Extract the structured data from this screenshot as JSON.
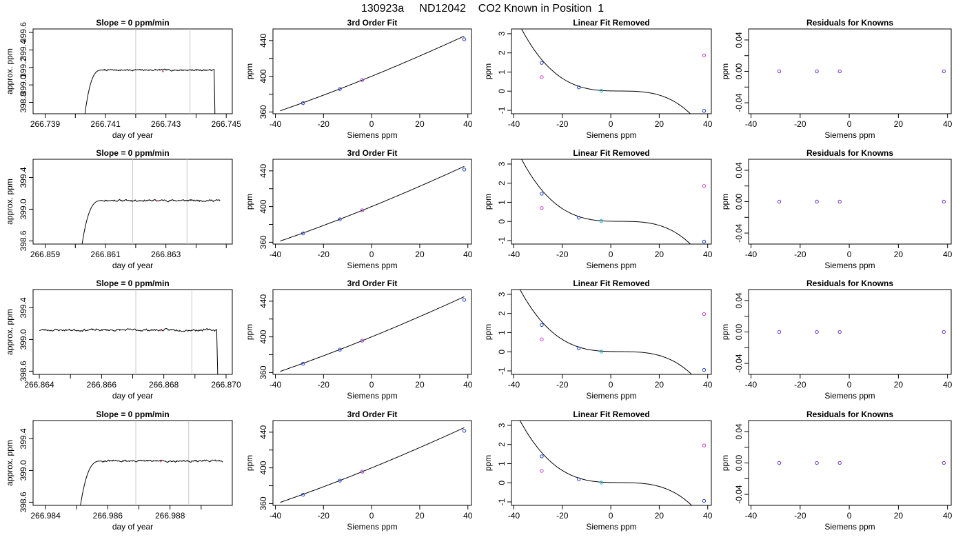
{
  "page_title": "130923a     ND12042    CO2 Known in Position  1",
  "chart_data": [
    {
      "row": 1,
      "type": "line",
      "title": "Slope =  0  ppm/min",
      "xlabel": "day of year",
      "ylabel": "approx. ppm",
      "xlim": [
        266.7386,
        266.7452
      ],
      "ylim": [
        398.67,
        399.64
      ],
      "xticks": [
        266.739,
        266.74,
        266.741,
        266.742,
        266.743,
        266.744,
        266.745
      ],
      "xtick_labels": [
        "266.739",
        "",
        "266.741",
        "",
        "266.743",
        "",
        "266.745"
      ],
      "yticks": [
        398.8,
        399.0,
        399.2,
        399.4,
        399.6
      ],
      "ytick_labels": [
        "398.8",
        "399.0",
        "399.2",
        "399.4",
        "399.6"
      ],
      "vlines": [
        266.742,
        266.7438
      ],
      "trace": {
        "start": 266.7403,
        "rise_end": 266.7409,
        "end": 266.7446,
        "level": 399.17,
        "rise_from": 398.62,
        "drop_to": 398.62,
        "noise": 0.006,
        "seed": 7
      },
      "marker": {
        "x": 266.7429,
        "y": 399.155,
        "color": "#e85a8a"
      }
    },
    {
      "row": 2,
      "type": "line",
      "title": "Slope =  0  ppm/min",
      "xlabel": "day of year",
      "ylabel": "approx. ppm",
      "xlim": [
        266.8586,
        266.8652
      ],
      "ylim": [
        398.56,
        399.63
      ],
      "xticks": [
        266.859,
        266.86,
        266.861,
        266.862,
        266.863,
        266.864,
        266.865
      ],
      "xtick_labels": [
        "266.859",
        "",
        "266.861",
        "",
        "266.863",
        "",
        ""
      ],
      "yticks": [
        398.6,
        399.0,
        399.4
      ],
      "ytick_labels": [
        "398.6",
        "399.0",
        "399.4"
      ],
      "vlines": [
        266.8619,
        266.8637
      ],
      "trace": {
        "start": 266.8602,
        "rise_end": 266.8609,
        "end": 266.8648,
        "level": 399.11,
        "rise_from": 398.5,
        "drop_to": null,
        "noise": 0.008,
        "seed": 11
      },
      "marker": {
        "x": 266.8627,
        "y": 399.105,
        "color": "#e85a8a"
      }
    },
    {
      "row": 3,
      "type": "line",
      "title": "Slope =  0  ppm/min",
      "xlabel": "day of year",
      "ylabel": "approx. ppm",
      "xlim": [
        266.8638,
        266.8702
      ],
      "ylim": [
        398.56,
        399.63
      ],
      "xticks": [
        266.864,
        266.865,
        266.866,
        266.867,
        266.868,
        266.869,
        266.87
      ],
      "xtick_labels": [
        "266.864",
        "",
        "266.866",
        "",
        "266.868",
        "",
        "266.870"
      ],
      "yticks": [
        398.6,
        399.0,
        399.4
      ],
      "ytick_labels": [
        "398.6",
        "399.0",
        "399.4"
      ],
      "vlines": [
        266.8671,
        266.8689
      ],
      "trace": {
        "start": 266.864,
        "rise_end": 266.864,
        "end": 266.8697,
        "level": 399.12,
        "rise_from": 399.12,
        "drop_to": 398.5,
        "noise": 0.01,
        "seed": 23
      },
      "marker": {
        "x": 266.8679,
        "y": 399.115,
        "color": "#e85a8a"
      }
    },
    {
      "row": 4,
      "type": "line",
      "title": "Slope =  0  ppm/min",
      "xlabel": "day of year",
      "ylabel": "approx. ppm",
      "xlim": [
        266.9836,
        266.99
      ],
      "ylim": [
        398.56,
        399.63
      ],
      "xticks": [
        266.984,
        266.985,
        266.986,
        266.987,
        266.988,
        266.989
      ],
      "xtick_labels": [
        "266.984",
        "",
        "266.986",
        "",
        "266.988",
        ""
      ],
      "yticks": [
        398.6,
        399.0,
        399.4
      ],
      "ytick_labels": [
        "398.6",
        "399.0",
        "399.4"
      ],
      "vlines": [
        266.9869,
        266.9886
      ],
      "trace": {
        "start": 266.9851,
        "rise_end": 266.9858,
        "end": 266.9897,
        "level": 399.12,
        "rise_from": 398.5,
        "drop_to": null,
        "noise": 0.008,
        "seed": 31
      },
      "marker": {
        "x": 266.9877,
        "y": 399.115,
        "color": "#e85a8a"
      }
    },
    {
      "row": 1,
      "type": "scatter",
      "title": "3rd Order Fit",
      "xlabel": "Siemens ppm",
      "ylabel": "ppm",
      "xlim": [
        -41,
        41.5
      ],
      "ylim": [
        358,
        453
      ],
      "xticks": [
        -40,
        -20,
        0,
        20,
        40
      ],
      "xtick_labels": [
        "-40",
        "-20",
        "0",
        "20",
        "40"
      ],
      "yticks": [
        360,
        380,
        400,
        420,
        440
      ],
      "ytick_labels": [
        "360",
        "",
        "400",
        "",
        "440"
      ],
      "curve": {
        "x_from": -38,
        "x_to": 38.5,
        "linear": [
          400,
          1.1
        ],
        "cubic": [
          0,
          0.002,
          -5e-06
        ]
      },
      "points": [
        {
          "x": -28.5,
          "y": 369.9,
          "color": "#1f3fd0"
        },
        {
          "x": -13.2,
          "y": 385.7,
          "color": "#1f3fd0"
        },
        {
          "x": -3.9,
          "y": 395.8,
          "color": "#a040d0"
        },
        {
          "x": 38.5,
          "y": 441.5,
          "color": "#1f3fd0"
        }
      ]
    },
    {
      "row": 2,
      "type": "scatter",
      "title": "3rd Order Fit",
      "xlabel": "Siemens ppm",
      "ylabel": "ppm",
      "xlim": [
        -41,
        41.5
      ],
      "ylim": [
        358,
        453
      ],
      "xticks": [
        -40,
        -20,
        0,
        20,
        40
      ],
      "xtick_labels": [
        "-40",
        "-20",
        "0",
        "20",
        "40"
      ],
      "yticks": [
        360,
        380,
        400,
        420,
        440
      ],
      "ytick_labels": [
        "360",
        "",
        "400",
        "",
        "440"
      ],
      "curve": {
        "x_from": -38,
        "x_to": 38.5,
        "linear": [
          400,
          1.1
        ],
        "cubic": [
          0,
          0.002,
          -5e-06
        ]
      },
      "points": [
        {
          "x": -28.5,
          "y": 369.9,
          "color": "#1f3fd0"
        },
        {
          "x": -13.2,
          "y": 385.7,
          "color": "#1f3fd0"
        },
        {
          "x": -3.9,
          "y": 395.8,
          "color": "#a040d0"
        },
        {
          "x": 38.5,
          "y": 441.5,
          "color": "#1f3fd0"
        }
      ]
    },
    {
      "row": 3,
      "type": "scatter",
      "title": "3rd Order Fit",
      "xlabel": "Siemens ppm",
      "ylabel": "ppm",
      "xlim": [
        -41,
        41.5
      ],
      "ylim": [
        358,
        453
      ],
      "xticks": [
        -40,
        -20,
        0,
        20,
        40
      ],
      "xtick_labels": [
        "-40",
        "-20",
        "0",
        "20",
        "40"
      ],
      "yticks": [
        360,
        380,
        400,
        420,
        440
      ],
      "ytick_labels": [
        "360",
        "",
        "400",
        "",
        "440"
      ],
      "curve": {
        "x_from": -38,
        "x_to": 38.5,
        "linear": [
          400,
          1.1
        ],
        "cubic": [
          0,
          0.002,
          -5e-06
        ]
      },
      "points": [
        {
          "x": -28.5,
          "y": 369.9,
          "color": "#1f3fd0"
        },
        {
          "x": -13.2,
          "y": 385.7,
          "color": "#1f3fd0"
        },
        {
          "x": -3.9,
          "y": 395.8,
          "color": "#a040d0"
        },
        {
          "x": 38.5,
          "y": 441.5,
          "color": "#1f3fd0"
        }
      ]
    },
    {
      "row": 4,
      "type": "scatter",
      "title": "3rd Order Fit",
      "xlabel": "Siemens ppm",
      "ylabel": "ppm",
      "xlim": [
        -41,
        41.5
      ],
      "ylim": [
        358,
        453
      ],
      "xticks": [
        -40,
        -20,
        0,
        20,
        40
      ],
      "xtick_labels": [
        "-40",
        "-20",
        "0",
        "20",
        "40"
      ],
      "yticks": [
        360,
        380,
        400,
        420,
        440
      ],
      "ytick_labels": [
        "360",
        "",
        "400",
        "",
        "440"
      ],
      "curve": {
        "x_from": -38,
        "x_to": 38.5,
        "linear": [
          400,
          1.1
        ],
        "cubic": [
          0,
          0.002,
          -5e-06
        ]
      },
      "points": [
        {
          "x": -28.5,
          "y": 369.9,
          "color": "#1f3fd0"
        },
        {
          "x": -13.2,
          "y": 385.7,
          "color": "#1f3fd0"
        },
        {
          "x": -3.9,
          "y": 395.8,
          "color": "#a040d0"
        },
        {
          "x": 38.5,
          "y": 441.5,
          "color": "#1f3fd0"
        }
      ]
    },
    {
      "row": 1,
      "type": "scatter",
      "title": "Linear Fit Removed",
      "xlabel": "Siemens ppm",
      "ylabel": "ppm",
      "xlim": [
        -41,
        41.5
      ],
      "ylim": [
        -1.18,
        3.25
      ],
      "xticks": [
        -40,
        -20,
        0,
        20,
        40
      ],
      "xtick_labels": [
        "-40",
        "-20",
        "0",
        "20",
        "40"
      ],
      "yticks": [
        -1,
        0,
        1,
        2,
        3
      ],
      "ytick_labels": [
        "-1",
        "0",
        "1",
        "2",
        "3"
      ],
      "curve": {
        "x_from": -38,
        "x_to": 38.5,
        "cubic_coeffs": [
          0.0,
          -0.0025,
          0.00055,
          -4.78e-05
        ]
      },
      "points": [
        {
          "x": -28.5,
          "y": 1.48,
          "color": "#1f3fd0"
        },
        {
          "x": -13.2,
          "y": 0.2,
          "color": "#1f3fd0"
        },
        {
          "x": -3.9,
          "y": 0.02,
          "color": "#20b0d0"
        },
        {
          "x": 38.5,
          "y": -1.03,
          "color": "#1f3fd0"
        },
        {
          "x": -28.5,
          "y": 0.73,
          "color": "#d040d0"
        },
        {
          "x": 38.5,
          "y": 1.87,
          "color": "#d040d0"
        }
      ]
    },
    {
      "row": 2,
      "type": "scatter",
      "title": "Linear Fit Removed",
      "xlabel": "Siemens ppm",
      "ylabel": "ppm",
      "xlim": [
        -41,
        41.5
      ],
      "ylim": [
        -1.18,
        3.25
      ],
      "xticks": [
        -40,
        -20,
        0,
        20,
        40
      ],
      "xtick_labels": [
        "-40",
        "-20",
        "0",
        "20",
        "40"
      ],
      "yticks": [
        -1,
        0,
        1,
        2,
        3
      ],
      "ytick_labels": [
        "-1",
        "0",
        "1",
        "2",
        "3"
      ],
      "curve": {
        "x_from": -38,
        "x_to": 38.5,
        "cubic_coeffs": [
          0.0,
          -0.0025,
          0.00055,
          -4.78e-05
        ]
      },
      "points": [
        {
          "x": -28.5,
          "y": 1.45,
          "color": "#1f3fd0"
        },
        {
          "x": -13.2,
          "y": 0.2,
          "color": "#1f3fd0"
        },
        {
          "x": -3.9,
          "y": 0.02,
          "color": "#20b0d0"
        },
        {
          "x": 38.5,
          "y": -1.05,
          "color": "#1f3fd0"
        },
        {
          "x": -28.5,
          "y": 0.7,
          "color": "#d040d0"
        },
        {
          "x": 38.5,
          "y": 1.85,
          "color": "#d040d0"
        }
      ]
    },
    {
      "row": 3,
      "type": "scatter",
      "title": "Linear Fit Removed",
      "xlabel": "Siemens ppm",
      "ylabel": "ppm",
      "xlim": [
        -41,
        41.5
      ],
      "ylim": [
        -1.18,
        3.25
      ],
      "xticks": [
        -40,
        -20,
        0,
        20,
        40
      ],
      "xtick_labels": [
        "-40",
        "-20",
        "0",
        "20",
        "40"
      ],
      "yticks": [
        -1,
        0,
        1,
        2,
        3
      ],
      "ytick_labels": [
        "-1",
        "0",
        "1",
        "2",
        "3"
      ],
      "curve": {
        "x_from": -38,
        "x_to": 38.5,
        "cubic_coeffs": [
          0.0,
          -0.0024,
          0.00053,
          -4.55e-05
        ]
      },
      "points": [
        {
          "x": -28.5,
          "y": 1.4,
          "color": "#1f3fd0"
        },
        {
          "x": -13.2,
          "y": 0.18,
          "color": "#1f3fd0"
        },
        {
          "x": -3.9,
          "y": 0.01,
          "color": "#20b0d0"
        },
        {
          "x": 38.5,
          "y": -0.95,
          "color": "#1f3fd0"
        },
        {
          "x": -28.5,
          "y": 0.65,
          "color": "#d040d0"
        },
        {
          "x": 38.5,
          "y": 1.97,
          "color": "#d040d0"
        }
      ]
    },
    {
      "row": 4,
      "type": "scatter",
      "title": "Linear Fit Removed",
      "xlabel": "Siemens ppm",
      "ylabel": "ppm",
      "xlim": [
        -41,
        41.5
      ],
      "ylim": [
        -1.18,
        3.25
      ],
      "xticks": [
        -40,
        -20,
        0,
        20,
        40
      ],
      "xtick_labels": [
        "-40",
        "-20",
        "0",
        "20",
        "40"
      ],
      "yticks": [
        -1,
        0,
        1,
        2,
        3
      ],
      "ytick_labels": [
        "-1",
        "0",
        "1",
        "2",
        "3"
      ],
      "curve": {
        "x_from": -38,
        "x_to": 38.5,
        "cubic_coeffs": [
          0.0,
          -0.0024,
          0.00053,
          -4.55e-05
        ]
      },
      "points": [
        {
          "x": -28.5,
          "y": 1.38,
          "color": "#1f3fd0"
        },
        {
          "x": -13.2,
          "y": 0.18,
          "color": "#1f3fd0"
        },
        {
          "x": -3.9,
          "y": 0.01,
          "color": "#20b0d0"
        },
        {
          "x": 38.5,
          "y": -0.95,
          "color": "#1f3fd0"
        },
        {
          "x": -28.5,
          "y": 0.62,
          "color": "#d040d0"
        },
        {
          "x": 38.5,
          "y": 1.95,
          "color": "#d040d0"
        }
      ]
    },
    {
      "row": 1,
      "type": "scatter",
      "title": "Residuals for Knowns",
      "xlabel": "Siemens ppm",
      "ylabel": "ppm",
      "xlim": [
        -41,
        41.5
      ],
      "ylim": [
        -0.054,
        0.054
      ],
      "xticks": [
        -40,
        -20,
        0,
        20,
        40
      ],
      "xtick_labels": [
        "-40",
        "-20",
        "0",
        "20",
        "40"
      ],
      "yticks": [
        -0.04,
        -0.02,
        0.0,
        0.02,
        0.04
      ],
      "ytick_labels": [
        "-0.04",
        "",
        "0.00",
        "",
        "0.04"
      ],
      "points": [
        {
          "x": -28.5,
          "y": 0,
          "color": "#6a30d0"
        },
        {
          "x": -13.2,
          "y": 0,
          "color": "#6a30d0"
        },
        {
          "x": -3.9,
          "y": 0,
          "color": "#6a30d0"
        },
        {
          "x": 38.5,
          "y": 0,
          "color": "#6a30d0"
        }
      ]
    },
    {
      "row": 2,
      "type": "scatter",
      "title": "Residuals for Knowns",
      "xlabel": "Siemens ppm",
      "ylabel": "ppm",
      "xlim": [
        -41,
        41.5
      ],
      "ylim": [
        -0.054,
        0.054
      ],
      "xticks": [
        -40,
        -20,
        0,
        20,
        40
      ],
      "xtick_labels": [
        "-40",
        "-20",
        "0",
        "20",
        "40"
      ],
      "yticks": [
        -0.04,
        -0.02,
        0.0,
        0.02,
        0.04
      ],
      "ytick_labels": [
        "-0.04",
        "",
        "0.00",
        "",
        "0.04"
      ],
      "points": [
        {
          "x": -28.5,
          "y": 0,
          "color": "#6a30d0"
        },
        {
          "x": -13.2,
          "y": 0,
          "color": "#6a30d0"
        },
        {
          "x": -3.9,
          "y": 0,
          "color": "#6a30d0"
        },
        {
          "x": 38.5,
          "y": 0,
          "color": "#6a30d0"
        }
      ]
    },
    {
      "row": 3,
      "type": "scatter",
      "title": "Residuals for Knowns",
      "xlabel": "Siemens ppm",
      "ylabel": "ppm",
      "xlim": [
        -41,
        41.5
      ],
      "ylim": [
        -0.054,
        0.054
      ],
      "xticks": [
        -40,
        -20,
        0,
        20,
        40
      ],
      "xtick_labels": [
        "-40",
        "-20",
        "0",
        "20",
        "40"
      ],
      "yticks": [
        -0.04,
        -0.02,
        0.0,
        0.02,
        0.04
      ],
      "ytick_labels": [
        "-0.04",
        "",
        "0.00",
        "",
        "0.04"
      ],
      "points": [
        {
          "x": -28.5,
          "y": 0,
          "color": "#6a30d0"
        },
        {
          "x": -13.2,
          "y": 0,
          "color": "#6a30d0"
        },
        {
          "x": -3.9,
          "y": 0,
          "color": "#6a30d0"
        },
        {
          "x": 38.5,
          "y": 0,
          "color": "#6a30d0"
        }
      ]
    },
    {
      "row": 4,
      "type": "scatter",
      "title": "Residuals for Knowns",
      "xlabel": "Siemens ppm",
      "ylabel": "ppm",
      "xlim": [
        -41,
        41.5
      ],
      "ylim": [
        -0.054,
        0.054
      ],
      "xticks": [
        -40,
        -20,
        0,
        20,
        40
      ],
      "xtick_labels": [
        "-40",
        "-20",
        "0",
        "20",
        "40"
      ],
      "yticks": [
        -0.04,
        -0.02,
        0.0,
        0.02,
        0.04
      ],
      "ytick_labels": [
        "-0.04",
        "",
        "0.00",
        "",
        "0.04"
      ],
      "points": [
        {
          "x": -28.5,
          "y": 0,
          "color": "#6a30d0"
        },
        {
          "x": -13.2,
          "y": 0,
          "color": "#6a30d0"
        },
        {
          "x": -3.9,
          "y": 0,
          "color": "#6a30d0"
        },
        {
          "x": 38.5,
          "y": 0,
          "color": "#6a30d0"
        }
      ]
    }
  ]
}
